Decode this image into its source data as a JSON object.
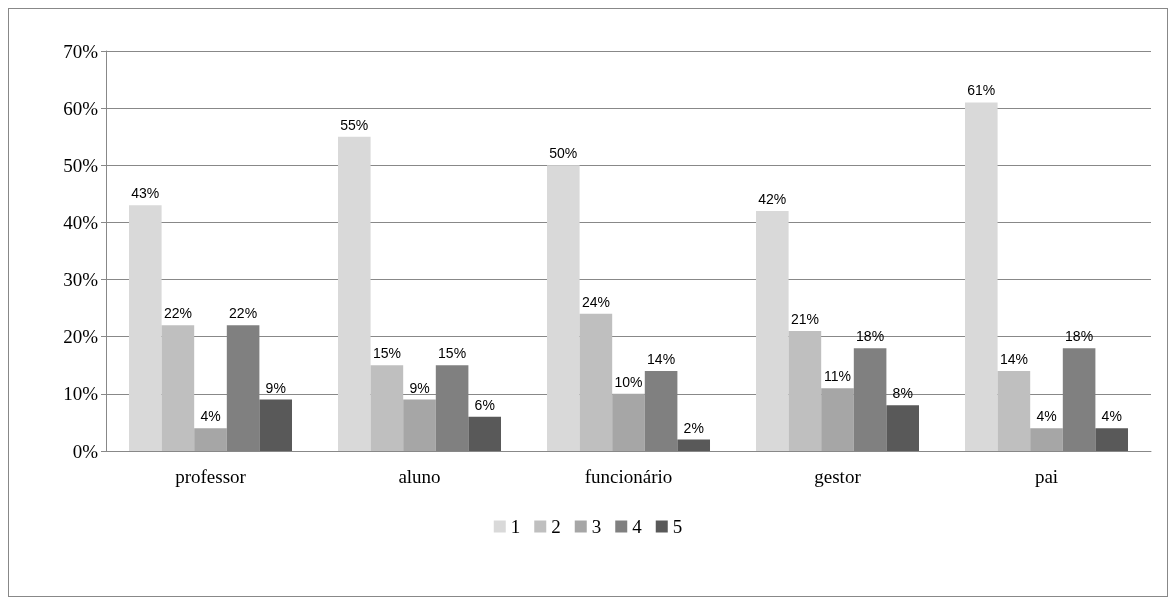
{
  "chart_data": {
    "type": "bar",
    "categories": [
      "professor",
      "aluno",
      "funcionário",
      "gestor",
      "pai"
    ],
    "series": [
      {
        "name": "1",
        "color": "#d9d9d9",
        "values": [
          43,
          55,
          50,
          42,
          61
        ],
        "value_labels": [
          "43%",
          "55%",
          "50%",
          "42%",
          "61%"
        ]
      },
      {
        "name": "2",
        "color": "#bfbfbf",
        "values": [
          22,
          15,
          24,
          21,
          14
        ],
        "value_labels": [
          "22%",
          "15%",
          "24%",
          "21%",
          "14%"
        ]
      },
      {
        "name": "3",
        "color": "#a6a6a6",
        "values": [
          4,
          9,
          10,
          11,
          4
        ],
        "value_labels": [
          "4%",
          "9%",
          "10%",
          "11%",
          "4%"
        ]
      },
      {
        "name": "4",
        "color": "#808080",
        "values": [
          22,
          15,
          14,
          18,
          18
        ],
        "value_labels": [
          "22%",
          "15%",
          "14%",
          "18%",
          "18%"
        ]
      },
      {
        "name": "5",
        "color": "#595959",
        "values": [
          9,
          6,
          2,
          8,
          4
        ],
        "value_labels": [
          "9%",
          "6%",
          "2%",
          "8%",
          "4%"
        ]
      }
    ],
    "ylim": [
      0,
      70
    ],
    "yticks": [
      {
        "value": 0,
        "label": "0%"
      },
      {
        "value": 10,
        "label": "10%"
      },
      {
        "value": 20,
        "label": "20%"
      },
      {
        "value": 30,
        "label": "30%"
      },
      {
        "value": 40,
        "label": "40%"
      },
      {
        "value": 50,
        "label": "50%"
      },
      {
        "value": 60,
        "label": "60%"
      },
      {
        "value": 70,
        "label": "70%"
      }
    ],
    "grid": "y",
    "legend": "bottom"
  }
}
